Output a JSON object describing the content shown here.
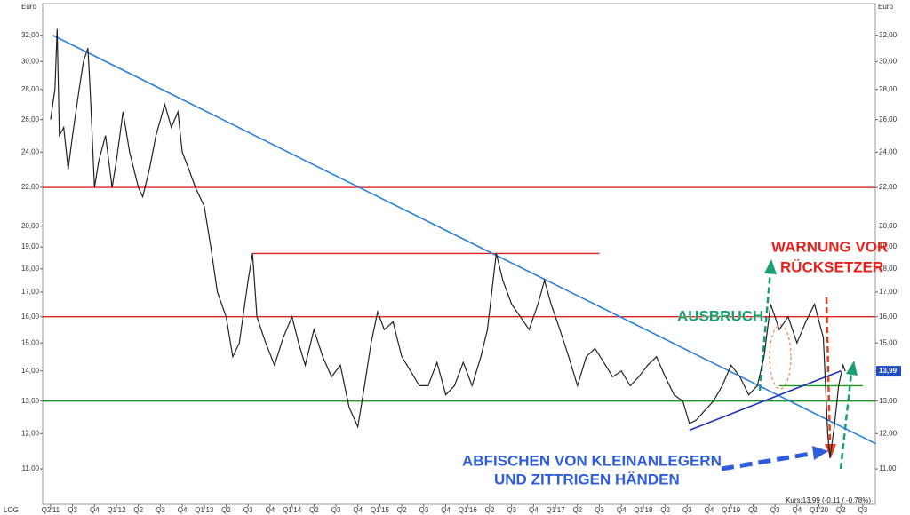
{
  "chart_data": {
    "type": "line",
    "y_axis_label": "Euro",
    "scale_label": "LOG",
    "log_scale": true,
    "xlim": [
      -0.36,
      37.57
    ],
    "ylim": [
      10.08,
      34.6
    ],
    "yticks": [
      {
        "value": 11,
        "label": "11,00"
      },
      {
        "value": 12,
        "label": "12,00"
      },
      {
        "value": 13,
        "label": "13,00"
      },
      {
        "value": 14,
        "label": "14,00"
      },
      {
        "value": 15,
        "label": "15,00"
      },
      {
        "value": 16,
        "label": "16,00"
      },
      {
        "value": 17,
        "label": "17,00"
      },
      {
        "value": 18,
        "label": "18,00"
      },
      {
        "value": 19,
        "label": "19,00"
      },
      {
        "value": 20,
        "label": "20,00"
      },
      {
        "value": 22,
        "label": "22,00"
      },
      {
        "value": 24,
        "label": "24,00"
      },
      {
        "value": 26,
        "label": "26,00"
      },
      {
        "value": 28,
        "label": "28,00"
      },
      {
        "value": 30,
        "label": "30,00"
      },
      {
        "value": 32,
        "label": "32,00"
      }
    ],
    "xticks": [
      {
        "value": 0,
        "label": "Q2'11"
      },
      {
        "value": 1,
        "label": "Q3"
      },
      {
        "value": 2,
        "label": "Q4"
      },
      {
        "value": 3,
        "label": "Q1'12"
      },
      {
        "value": 4,
        "label": "Q2"
      },
      {
        "value": 5,
        "label": "Q3"
      },
      {
        "value": 6,
        "label": "Q4"
      },
      {
        "value": 7,
        "label": "Q1'13"
      },
      {
        "value": 8,
        "label": "Q2"
      },
      {
        "value": 9,
        "label": "Q3"
      },
      {
        "value": 10,
        "label": "Q4"
      },
      {
        "value": 11,
        "label": "Q1'14"
      },
      {
        "value": 12,
        "label": "Q2"
      },
      {
        "value": 13,
        "label": "Q3"
      },
      {
        "value": 14,
        "label": "Q4"
      },
      {
        "value": 15,
        "label": "Q1'15"
      },
      {
        "value": 16,
        "label": "Q2"
      },
      {
        "value": 17,
        "label": "Q3"
      },
      {
        "value": 18,
        "label": "Q4"
      },
      {
        "value": 19,
        "label": "Q1'16"
      },
      {
        "value": 20,
        "label": "Q2"
      },
      {
        "value": 21,
        "label": "Q3"
      },
      {
        "value": 22,
        "label": "Q4"
      },
      {
        "value": 23,
        "label": "Q1'17"
      },
      {
        "value": 24,
        "label": "Q2"
      },
      {
        "value": 25,
        "label": "Q3"
      },
      {
        "value": 26,
        "label": "Q4"
      },
      {
        "value": 27,
        "label": "Q1'18"
      },
      {
        "value": 28,
        "label": "Q2"
      },
      {
        "value": 29,
        "label": "Q3"
      },
      {
        "value": 30,
        "label": "Q4"
      },
      {
        "value": 31,
        "label": "Q1'19"
      },
      {
        "value": 32,
        "label": "Q2"
      },
      {
        "value": 33,
        "label": "Q3"
      },
      {
        "value": 34,
        "label": "Q4"
      },
      {
        "value": 35,
        "label": "Q1'20"
      },
      {
        "value": 36,
        "label": "Q2"
      },
      {
        "value": 37,
        "label": "Q3"
      }
    ],
    "series": [
      {
        "color": "#222222",
        "x": [
          0,
          0.2,
          0.3,
          0.4,
          0.6,
          0.8,
          1.0,
          1.3,
          1.5,
          1.7,
          1.8,
          2.0,
          2.2,
          2.5,
          2.8,
          3.0,
          3.3,
          3.6,
          4.0,
          4.2,
          4.5,
          4.8,
          5.2,
          5.5,
          5.8,
          6.0,
          6.3,
          6.6,
          7.0,
          7.3,
          7.6,
          8.0,
          8.3,
          8.6,
          9.0,
          9.2,
          9.4,
          9.8,
          10.2,
          10.6,
          11.0,
          11.3,
          11.6,
          12.0,
          12.4,
          12.8,
          13.2,
          13.6,
          14.0,
          14.3,
          14.6,
          14.9,
          15.2,
          15.6,
          16.0,
          16.4,
          16.8,
          17.2,
          17.6,
          18.0,
          18.4,
          18.8,
          19.2,
          19.6,
          19.9,
          20.3,
          20.6,
          21.0,
          21.4,
          21.8,
          22.2,
          22.5,
          22.8,
          23.2,
          23.6,
          24.0,
          24.4,
          24.8,
          25.2,
          25.6,
          26.0,
          26.4,
          26.8,
          27.2,
          27.6,
          28.0,
          28.4,
          28.8,
          29.1,
          29.4,
          29.8,
          30.2,
          30.6,
          31.0,
          31.4,
          31.8,
          32.2,
          32.5,
          32.8,
          33.2,
          33.6,
          34.0,
          34.4,
          34.8,
          35.2,
          35.4,
          35.5,
          35.7,
          35.9,
          36.1,
          36.2
        ],
        "values": [
          26,
          28,
          32.5,
          25,
          25.5,
          23,
          25,
          28,
          30,
          31,
          28,
          22,
          23.5,
          25,
          22,
          23.5,
          26.5,
          24,
          22,
          21.5,
          23,
          25,
          27,
          25.5,
          26.5,
          24,
          23,
          22,
          21,
          19,
          17,
          16,
          14.5,
          15,
          17.5,
          18.7,
          16,
          15,
          14.2,
          15.2,
          16,
          15,
          14.2,
          15.5,
          14.5,
          13.8,
          14.2,
          12.8,
          12.2,
          13.5,
          15,
          16.2,
          15.5,
          15.8,
          14.5,
          14,
          13.5,
          13.5,
          14.3,
          13.2,
          13.5,
          14.3,
          13.5,
          14.5,
          15.5,
          18.7,
          17.5,
          16.5,
          16,
          15.5,
          16.5,
          17.5,
          16.5,
          15.5,
          14.5,
          13.5,
          14.5,
          14.8,
          14.3,
          13.8,
          14,
          13.5,
          13.8,
          14.2,
          14.5,
          13.8,
          13.2,
          13,
          12.3,
          12.4,
          12.7,
          13,
          13.5,
          14.2,
          13.8,
          13.2,
          13.5,
          14.5,
          16.5,
          15.5,
          16,
          15,
          15.8,
          16.5,
          15.2,
          12,
          11.3,
          12.2,
          13.5,
          14.2,
          13.99
        ]
      }
    ],
    "hlines": [
      {
        "value": 22,
        "color": "#e02020"
      },
      {
        "value": 18.7,
        "color": "#e02020",
        "x": [
          9.2,
          25.0
        ]
      },
      {
        "value": 16,
        "color": "#e02020"
      },
      {
        "value": 13,
        "color": "#1a9a1a"
      },
      {
        "value": 13.5,
        "color": "#1a9a1a",
        "x": [
          33.2,
          37.0
        ]
      }
    ],
    "trendlines": [
      {
        "color": "#2a7fe0",
        "x": [
          0.1,
          37.6
        ],
        "y": [
          32,
          11.7
        ]
      },
      {
        "color": "#2030c0",
        "x": [
          29.1,
          36.0
        ],
        "y": [
          12.1,
          14
        ]
      }
    ],
    "price_label": {
      "value": 13.99,
      "label": "13,99"
    },
    "annotations": [
      {
        "text": "WARNUNG VOR",
        "color": "#e8201a"
      },
      {
        "text": "RÜCKSETZER",
        "color": "#e8201a"
      },
      {
        "text": "AUSBRUCH",
        "color": "#16a070"
      },
      {
        "text": "ABFISCHEN VON KLEINANLEGERN",
        "color": "#2f5de0"
      },
      {
        "text": "UND ZITTRIGEN HÄNDEN",
        "color": "#2f5de0"
      },
      {
        "text": "Kurs:13,99 (-0,11 / -0,78%)",
        "color": "#222222"
      }
    ]
  }
}
